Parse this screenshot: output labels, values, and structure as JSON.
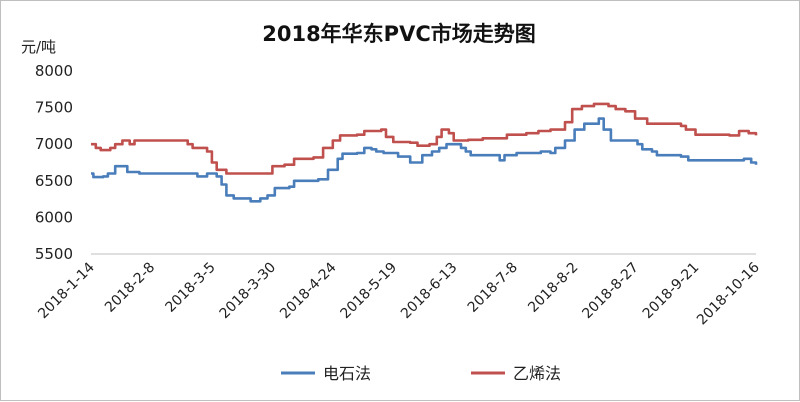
{
  "chart_data": {
    "type": "line",
    "title": "2018年华东PVC市场走势图",
    "ylabel": "元/吨",
    "xlabel": "",
    "ylim": [
      5500,
      8000
    ],
    "yticks": [
      5500,
      6000,
      6500,
      7000,
      7500,
      8000
    ],
    "x_tick_labels": [
      "2018-1-14",
      "2018-2-8",
      "2018-3-5",
      "2018-3-30",
      "2018-4-24",
      "2018-5-19",
      "2018-6-13",
      "2018-7-8",
      "2018-8-2",
      "2018-8-27",
      "2018-9-21",
      "2018-10-16"
    ],
    "x_tick_index": [
      0,
      25,
      50,
      75,
      100,
      125,
      150,
      175,
      200,
      225,
      250,
      275
    ],
    "grid": false,
    "legend_position": "bottom",
    "series": [
      {
        "name": "电石法",
        "color": "#4a7ebb",
        "points": [
          [
            0,
            6600
          ],
          [
            1,
            6550
          ],
          [
            5,
            6560
          ],
          [
            7,
            6600
          ],
          [
            10,
            6700
          ],
          [
            13,
            6700
          ],
          [
            15,
            6620
          ],
          [
            20,
            6600
          ],
          [
            40,
            6600
          ],
          [
            44,
            6560
          ],
          [
            48,
            6600
          ],
          [
            52,
            6560
          ],
          [
            54,
            6450
          ],
          [
            56,
            6300
          ],
          [
            59,
            6260
          ],
          [
            66,
            6220
          ],
          [
            70,
            6260
          ],
          [
            73,
            6300
          ],
          [
            76,
            6400
          ],
          [
            82,
            6420
          ],
          [
            84,
            6500
          ],
          [
            94,
            6520
          ],
          [
            98,
            6650
          ],
          [
            102,
            6800
          ],
          [
            104,
            6870
          ],
          [
            110,
            6880
          ],
          [
            113,
            6950
          ],
          [
            116,
            6930
          ],
          [
            118,
            6900
          ],
          [
            121,
            6880
          ],
          [
            127,
            6830
          ],
          [
            132,
            6750
          ],
          [
            137,
            6850
          ],
          [
            141,
            6900
          ],
          [
            144,
            6950
          ],
          [
            147,
            7000
          ],
          [
            150,
            7000
          ],
          [
            153,
            6950
          ],
          [
            155,
            6900
          ],
          [
            157,
            6850
          ],
          [
            166,
            6850
          ],
          [
            169,
            6780
          ],
          [
            171,
            6850
          ],
          [
            176,
            6880
          ],
          [
            186,
            6900
          ],
          [
            190,
            6880
          ],
          [
            192,
            6950
          ],
          [
            196,
            7050
          ],
          [
            200,
            7200
          ],
          [
            204,
            7280
          ],
          [
            210,
            7350
          ],
          [
            212,
            7200
          ],
          [
            215,
            7050
          ],
          [
            226,
            7000
          ],
          [
            228,
            6930
          ],
          [
            232,
            6900
          ],
          [
            234,
            6850
          ],
          [
            244,
            6830
          ],
          [
            247,
            6780
          ],
          [
            264,
            6780
          ],
          [
            270,
            6800
          ],
          [
            273,
            6750
          ],
          [
            275,
            6720
          ]
        ]
      },
      {
        "name": "乙烯法",
        "color": "#c0504d",
        "points": [
          [
            0,
            7000
          ],
          [
            2,
            6950
          ],
          [
            4,
            6920
          ],
          [
            8,
            6950
          ],
          [
            10,
            7000
          ],
          [
            13,
            7050
          ],
          [
            16,
            7000
          ],
          [
            18,
            7050
          ],
          [
            38,
            7050
          ],
          [
            40,
            7000
          ],
          [
            42,
            6950
          ],
          [
            45,
            6950
          ],
          [
            48,
            6900
          ],
          [
            50,
            6750
          ],
          [
            52,
            6650
          ],
          [
            56,
            6600
          ],
          [
            73,
            6600
          ],
          [
            75,
            6700
          ],
          [
            80,
            6720
          ],
          [
            84,
            6800
          ],
          [
            92,
            6820
          ],
          [
            96,
            6950
          ],
          [
            100,
            7050
          ],
          [
            103,
            7120
          ],
          [
            110,
            7130
          ],
          [
            113,
            7180
          ],
          [
            120,
            7200
          ],
          [
            122,
            7100
          ],
          [
            125,
            7030
          ],
          [
            132,
            7020
          ],
          [
            135,
            6980
          ],
          [
            140,
            7000
          ],
          [
            143,
            7100
          ],
          [
            145,
            7200
          ],
          [
            148,
            7150
          ],
          [
            150,
            7050
          ],
          [
            156,
            7060
          ],
          [
            162,
            7080
          ],
          [
            172,
            7130
          ],
          [
            180,
            7150
          ],
          [
            185,
            7180
          ],
          [
            190,
            7200
          ],
          [
            196,
            7300
          ],
          [
            199,
            7480
          ],
          [
            203,
            7520
          ],
          [
            208,
            7550
          ],
          [
            214,
            7520
          ],
          [
            217,
            7480
          ],
          [
            221,
            7450
          ],
          [
            225,
            7350
          ],
          [
            230,
            7280
          ],
          [
            244,
            7250
          ],
          [
            246,
            7200
          ],
          [
            250,
            7130
          ],
          [
            264,
            7120
          ],
          [
            268,
            7180
          ],
          [
            272,
            7150
          ],
          [
            275,
            7120
          ]
        ]
      }
    ]
  }
}
